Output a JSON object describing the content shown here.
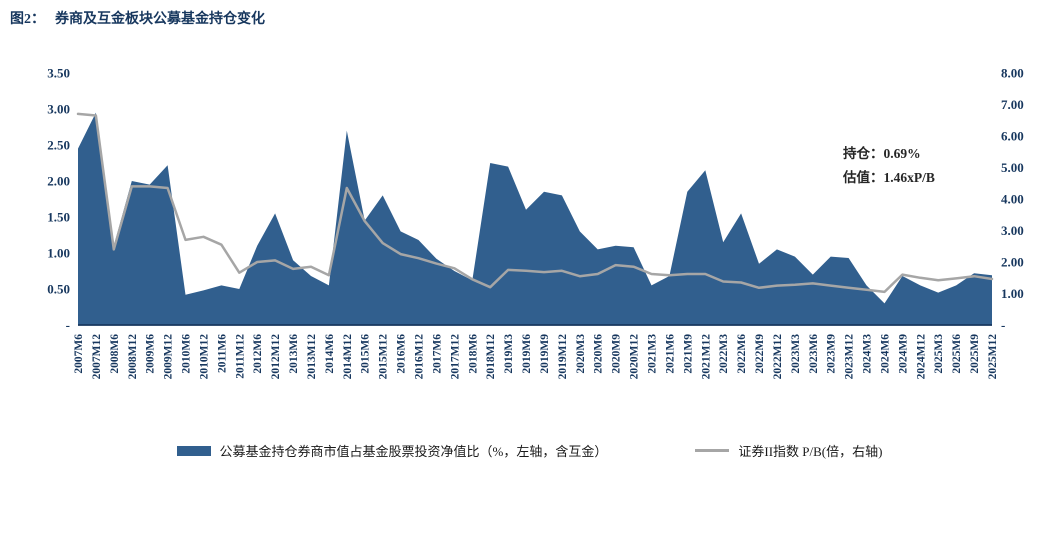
{
  "figure": {
    "label": "图2：",
    "title": "券商及互金板块公募基金持仓变化"
  },
  "annotation": {
    "holding": "持仓：0.69%",
    "valuation": "估值：1.46xP/B"
  },
  "legend": {
    "items": [
      {
        "label": "公募基金持仓券商市值占基金股票投资净值比（%，左轴，含互金）",
        "type": "area",
        "color": "#315F8E"
      },
      {
        "label": "证券II指数 P/B(倍，右轴)",
        "type": "line",
        "color": "#A6A6A6"
      }
    ]
  },
  "colors": {
    "navy": "#17375E",
    "area": "#315F8E",
    "line": "#A6A6A6",
    "axis": "#17375E"
  },
  "chart_data": {
    "type": "area",
    "title": "券商及互金板块公募基金持仓变化",
    "categories": [
      "2007M6",
      "2007M12",
      "2008M6",
      "2008M12",
      "2009M6",
      "2009M12",
      "2010M6",
      "2010M12",
      "2011M6",
      "2011M12",
      "2012M6",
      "2012M12",
      "2013M6",
      "2013M12",
      "2014M6",
      "2014M12",
      "2015M6",
      "2015M12",
      "2016M6",
      "2016M12",
      "2017M6",
      "2017M12",
      "2018M6",
      "2018M12",
      "2019M3",
      "2019M6",
      "2019M9",
      "2019M12",
      "2020M3",
      "2020M6",
      "2020M9",
      "2020M12",
      "2021M3",
      "2021M6",
      "2021M9",
      "2021M12",
      "2022M3",
      "2022M6",
      "2022M9",
      "2022M12",
      "2023M3",
      "2023M6",
      "2023M9",
      "2023M12",
      "2024M3",
      "2024M6",
      "2024M9",
      "2024M12",
      "2025M3",
      "2025M6",
      "2025M9",
      "2025M12"
    ],
    "series": [
      {
        "name": "公募基金持仓券商市值占基金股票投资净值比（%，左轴，含互金）",
        "type": "area",
        "axis": "left",
        "color": "#315F8E",
        "values": [
          2.45,
          2.95,
          1.1,
          2.0,
          1.95,
          2.22,
          0.42,
          0.48,
          0.55,
          0.5,
          1.1,
          1.55,
          0.9,
          0.68,
          0.55,
          2.7,
          1.45,
          1.8,
          1.3,
          1.18,
          0.92,
          0.75,
          0.62,
          2.25,
          2.2,
          1.6,
          1.85,
          1.8,
          1.3,
          1.05,
          1.1,
          1.08,
          0.55,
          0.68,
          1.85,
          2.15,
          1.15,
          1.55,
          0.85,
          1.05,
          0.95,
          0.7,
          0.95,
          0.93,
          0.55,
          0.3,
          0.68,
          0.55,
          0.45,
          0.55,
          0.72,
          0.69
        ]
      },
      {
        "name": "证券II指数 P/B(倍，右轴)",
        "type": "line",
        "axis": "right",
        "color": "#A6A6A6",
        "values": [
          6.7,
          6.65,
          2.4,
          4.4,
          4.4,
          4.35,
          2.7,
          2.8,
          2.55,
          1.66,
          2.0,
          2.05,
          1.78,
          1.85,
          1.58,
          4.35,
          3.3,
          2.6,
          2.25,
          2.12,
          1.95,
          1.8,
          1.45,
          1.2,
          1.75,
          1.72,
          1.68,
          1.72,
          1.55,
          1.62,
          1.9,
          1.85,
          1.62,
          1.58,
          1.62,
          1.62,
          1.38,
          1.35,
          1.18,
          1.25,
          1.28,
          1.32,
          1.25,
          1.18,
          1.12,
          1.05,
          1.6,
          1.5,
          1.42,
          1.48,
          1.55,
          1.46
        ]
      }
    ],
    "left_axis": {
      "ticks": [
        "3.50",
        "3.00",
        "2.50",
        "2.00",
        "1.50",
        "1.00",
        "0.50",
        "-"
      ],
      "min": 0,
      "max": 3.5
    },
    "right_axis": {
      "ticks": [
        "8.00",
        "7.00",
        "6.00",
        "5.00",
        "4.00",
        "3.00",
        "2.00",
        "1.00",
        "-"
      ],
      "min": 0,
      "max": 8
    },
    "grid": false,
    "legend_position": "bottom",
    "annotations": [
      "持仓：0.69%",
      "估值：1.46xP/B"
    ]
  }
}
